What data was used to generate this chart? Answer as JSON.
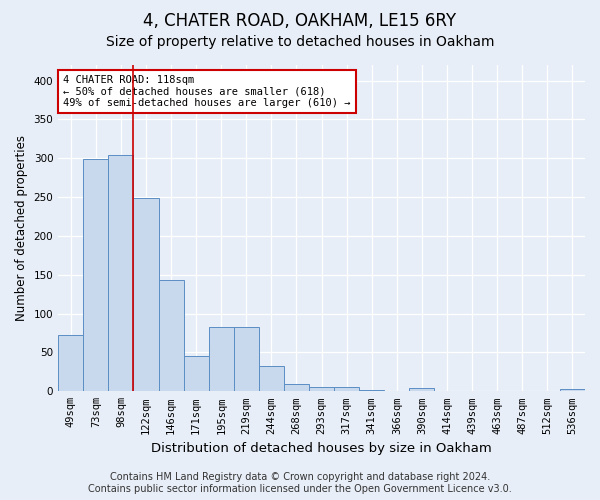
{
  "title1": "4, CHATER ROAD, OAKHAM, LE15 6RY",
  "title2": "Size of property relative to detached houses in Oakham",
  "xlabel": "Distribution of detached houses by size in Oakham",
  "ylabel": "Number of detached properties",
  "categories": [
    "49sqm",
    "73sqm",
    "98sqm",
    "122sqm",
    "146sqm",
    "171sqm",
    "195sqm",
    "219sqm",
    "244sqm",
    "268sqm",
    "293sqm",
    "317sqm",
    "341sqm",
    "366sqm",
    "390sqm",
    "414sqm",
    "439sqm",
    "463sqm",
    "487sqm",
    "512sqm",
    "536sqm"
  ],
  "values": [
    72,
    299,
    304,
    249,
    143,
    45,
    83,
    83,
    33,
    9,
    6,
    6,
    2,
    0,
    4,
    0,
    0,
    0,
    0,
    0,
    3
  ],
  "bar_color": "#c9d9ed",
  "bar_edge_color": "#5b8ec4",
  "vline_color": "#cc0000",
  "annotation_text": "4 CHATER ROAD: 118sqm\n← 50% of detached houses are smaller (618)\n49% of semi-detached houses are larger (610) →",
  "annotation_box_color": "#ffffff",
  "annotation_box_edge_color": "#cc0000",
  "ylim": [
    0,
    420
  ],
  "yticks": [
    0,
    50,
    100,
    150,
    200,
    250,
    300,
    350,
    400
  ],
  "footer1": "Contains HM Land Registry data © Crown copyright and database right 2024.",
  "footer2": "Contains public sector information licensed under the Open Government Licence v3.0.",
  "background_color": "#e8eef7",
  "plot_bg_color": "#e8eef7",
  "grid_color": "#ffffff",
  "title1_fontsize": 12,
  "title2_fontsize": 10,
  "xlabel_fontsize": 9.5,
  "ylabel_fontsize": 8.5,
  "tick_fontsize": 7.5,
  "footer_fontsize": 7,
  "ann_fontsize": 7.5
}
